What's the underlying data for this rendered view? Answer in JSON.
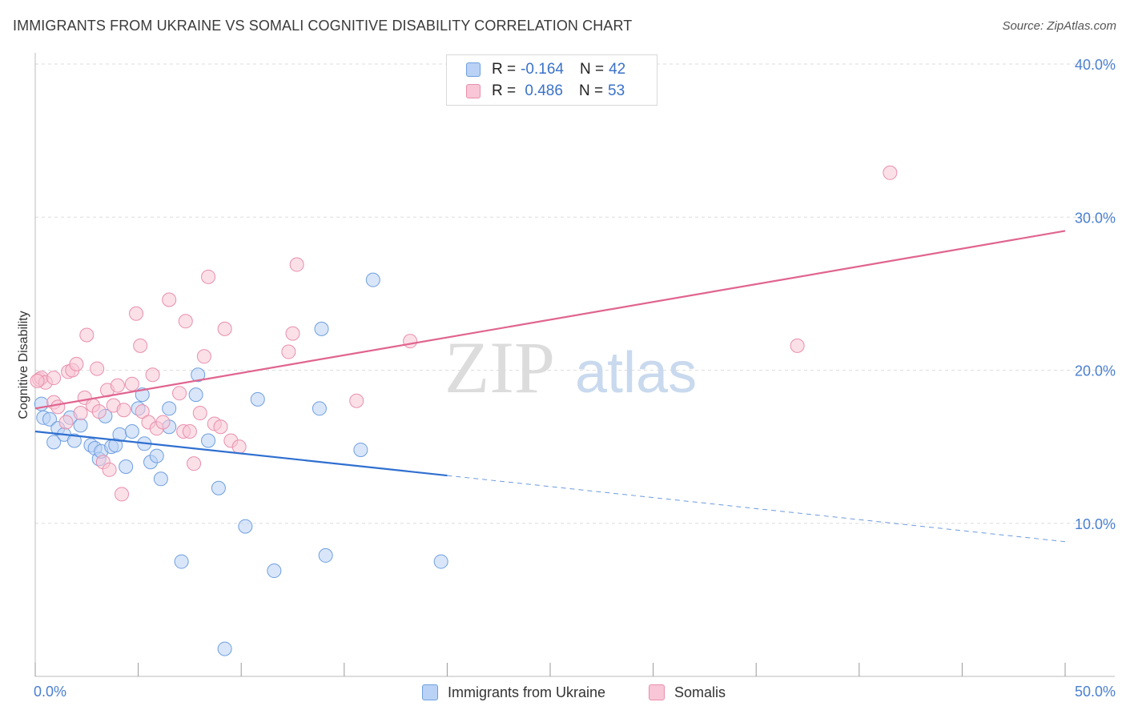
{
  "title": "IMMIGRANTS FROM UKRAINE VS SOMALI COGNITIVE DISABILITY CORRELATION CHART",
  "source": "Source: ZipAtlas.com",
  "watermark": {
    "zip": "ZIP",
    "atlas": "atlas"
  },
  "legend": {
    "rows": [
      {
        "r_label": "R =",
        "r_value": "-0.164",
        "n_label": "N =",
        "n_value": "42"
      },
      {
        "r_label": "R =",
        "r_value": " 0.486",
        "n_label": "N =",
        "n_value": "53"
      }
    ]
  },
  "bottom_legend": [
    "Immigrants from Ukraine",
    "Somalis"
  ],
  "colors": {
    "ukraine_fill": "#b9d2f5",
    "ukraine_stroke": "#6f9fdf",
    "ukraine_line": "#2f6fd0",
    "somali_fill": "#f8c6d6",
    "somali_stroke": "#e98fac",
    "somali_line": "#e0648f",
    "axis_label": "#4a7fd0",
    "grid": "#dddddd"
  },
  "chart_data": {
    "type": "scatter",
    "title": "IMMIGRANTS FROM UKRAINE VS SOMALI COGNITIVE DISABILITY CORRELATION CHART",
    "xlabel": "",
    "ylabel": "Cognitive Disability",
    "xlim": [
      0,
      50
    ],
    "ylim": [
      0,
      40
    ],
    "x_tick_labels": [
      {
        "value": 0,
        "label": "0.0%"
      },
      {
        "value": 50,
        "label": "50.0%"
      }
    ],
    "y_tick_labels": [
      {
        "value": 10,
        "label": "10.0%"
      },
      {
        "value": 20,
        "label": "20.0%"
      },
      {
        "value": 30,
        "label": "30.0%"
      },
      {
        "value": 40,
        "label": "40.0%"
      }
    ],
    "grid": true,
    "legend_placement": "top-center",
    "series": [
      {
        "name": "Immigrants from Ukraine",
        "r": -0.164,
        "n": 42,
        "points": [
          [
            0.3,
            17.8
          ],
          [
            0.4,
            16.9
          ],
          [
            0.7,
            16.8
          ],
          [
            0.9,
            15.3
          ],
          [
            1.1,
            16.2
          ],
          [
            1.4,
            15.8
          ],
          [
            1.7,
            16.9
          ],
          [
            1.9,
            15.4
          ],
          [
            2.2,
            16.4
          ],
          [
            2.7,
            15.1
          ],
          [
            2.9,
            14.9
          ],
          [
            3.1,
            14.2
          ],
          [
            3.2,
            14.7
          ],
          [
            3.4,
            17.0
          ],
          [
            3.7,
            15.0
          ],
          [
            3.9,
            15.1
          ],
          [
            4.1,
            15.8
          ],
          [
            4.4,
            13.7
          ],
          [
            4.7,
            16.0
          ],
          [
            5.0,
            17.5
          ],
          [
            5.2,
            18.4
          ],
          [
            5.3,
            15.2
          ],
          [
            5.6,
            14.0
          ],
          [
            5.9,
            14.4
          ],
          [
            6.1,
            12.9
          ],
          [
            6.5,
            16.3
          ],
          [
            6.5,
            17.5
          ],
          [
            7.1,
            7.5
          ],
          [
            7.8,
            18.4
          ],
          [
            7.9,
            19.7
          ],
          [
            8.4,
            15.4
          ],
          [
            8.9,
            12.3
          ],
          [
            9.2,
            1.8
          ],
          [
            10.2,
            9.8
          ],
          [
            10.8,
            18.1
          ],
          [
            11.6,
            6.9
          ],
          [
            13.8,
            17.5
          ],
          [
            13.9,
            22.7
          ],
          [
            14.1,
            7.9
          ],
          [
            15.8,
            14.8
          ],
          [
            16.4,
            25.9
          ],
          [
            19.7,
            7.5
          ]
        ]
      },
      {
        "name": "Somalis",
        "r": 0.486,
        "n": 53,
        "points": [
          [
            0.2,
            19.4
          ],
          [
            0.3,
            19.5
          ],
          [
            0.5,
            19.2
          ],
          [
            0.9,
            19.5
          ],
          [
            0.9,
            17.9
          ],
          [
            1.1,
            17.6
          ],
          [
            1.5,
            16.6
          ],
          [
            1.6,
            19.9
          ],
          [
            1.8,
            20.0
          ],
          [
            2.0,
            20.4
          ],
          [
            2.2,
            17.2
          ],
          [
            2.4,
            18.2
          ],
          [
            2.5,
            22.3
          ],
          [
            2.8,
            17.7
          ],
          [
            3.0,
            20.1
          ],
          [
            3.1,
            17.3
          ],
          [
            3.3,
            14.0
          ],
          [
            3.5,
            18.7
          ],
          [
            3.6,
            13.5
          ],
          [
            3.8,
            17.7
          ],
          [
            4.0,
            19.0
          ],
          [
            4.2,
            11.9
          ],
          [
            4.3,
            17.4
          ],
          [
            4.7,
            19.1
          ],
          [
            4.9,
            23.7
          ],
          [
            5.1,
            21.6
          ],
          [
            5.2,
            17.3
          ],
          [
            5.5,
            16.6
          ],
          [
            5.7,
            19.7
          ],
          [
            5.9,
            16.2
          ],
          [
            6.2,
            16.6
          ],
          [
            6.5,
            24.6
          ],
          [
            7.0,
            18.5
          ],
          [
            7.2,
            16.0
          ],
          [
            7.3,
            23.2
          ],
          [
            7.5,
            16.0
          ],
          [
            7.7,
            13.9
          ],
          [
            8.0,
            17.2
          ],
          [
            8.2,
            20.9
          ],
          [
            8.4,
            26.1
          ],
          [
            8.7,
            16.5
          ],
          [
            9.0,
            16.3
          ],
          [
            9.2,
            22.7
          ],
          [
            9.5,
            15.4
          ],
          [
            9.9,
            15.0
          ],
          [
            12.3,
            21.2
          ],
          [
            12.5,
            22.4
          ],
          [
            12.7,
            26.9
          ],
          [
            15.6,
            18.0
          ],
          [
            18.2,
            21.9
          ],
          [
            37.0,
            21.6
          ],
          [
            41.5,
            32.9
          ],
          [
            0.1,
            19.3
          ]
        ]
      }
    ],
    "trend_lines": [
      {
        "series": "Immigrants from Ukraine",
        "x": [
          0,
          50
        ],
        "y": [
          16.0,
          8.8
        ],
        "solid_until_x": 20
      },
      {
        "series": "Somalis",
        "x": [
          0,
          50
        ],
        "y": [
          17.5,
          29.1
        ]
      }
    ]
  }
}
